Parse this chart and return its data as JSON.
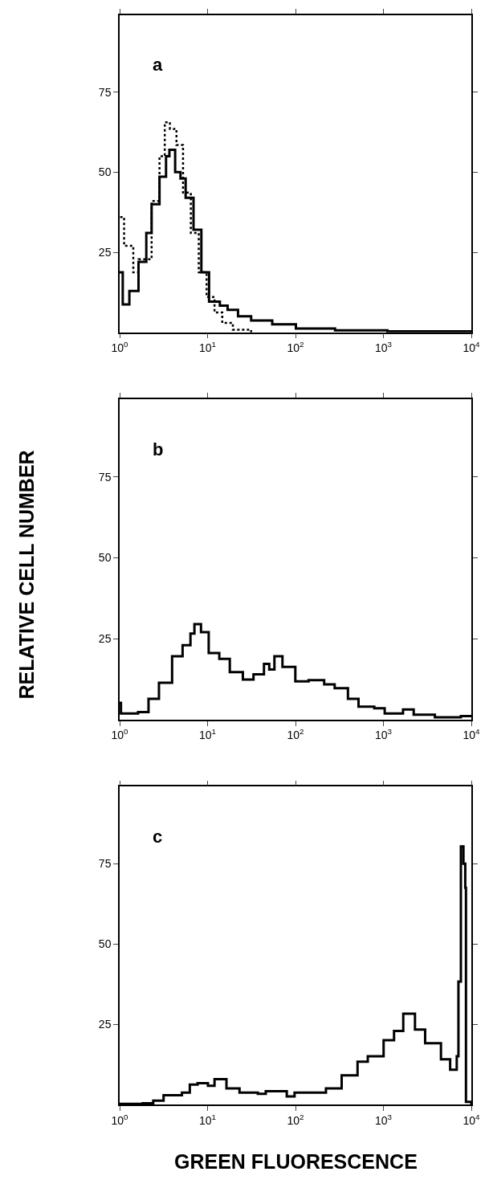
{
  "chart_data": [
    {
      "type": "step",
      "annotations": [
        "a"
      ],
      "log": "x",
      "xlim": [
        1,
        10000
      ],
      "ylim": [
        0,
        99
      ],
      "xticks": [
        {
          "value": 1,
          "label": "10$^{0}$"
        },
        {
          "value": 10,
          "label": "10$^{1}$"
        },
        {
          "value": 100,
          "label": "10$^{2}$"
        },
        {
          "value": 1000,
          "label": "10$^{3}$"
        },
        {
          "value": 10000,
          "label": "10$^{4}$"
        }
      ],
      "yticks": [
        25,
        50,
        75
      ],
      "series": [
        {
          "color": "#000000",
          "line_style": "solid",
          "x": [
            1.0,
            1.085,
            1.29,
            1.64,
            2.01,
            2.31,
            2.84,
            3.37,
            3.68,
            4.28,
            4.92,
            5.63,
            6.92,
            8.5,
            10.4,
            13.8,
            16.9,
            22.2,
            31.3,
            54.4,
            101,
            282,
            1111,
            10000
          ],
          "values": [
            18.7,
            8.7,
            12.9,
            22,
            31,
            40,
            48.6,
            55,
            57,
            50,
            48,
            42,
            32,
            18.7,
            9.6,
            8.3,
            7,
            5,
            3.7,
            2.5,
            1.2,
            0.6,
            0.3,
            0.2
          ]
        },
        {
          "color": "#000000",
          "line_style": "dotted",
          "x": [
            1.014,
            1.124,
            1.43,
            1.64,
            2.31,
            2.84,
            3.26,
            3.73,
            4.43,
            5.26,
            6.45,
            7.94,
            9.75,
            12.0,
            14.7,
            19.4,
            31.3
          ],
          "values": [
            36,
            27,
            18.7,
            22.8,
            41,
            55,
            65.6,
            63.5,
            58.5,
            43.6,
            31,
            18.7,
            11,
            6.2,
            2.9,
            0.8,
            0
          ]
        }
      ]
    },
    {
      "type": "step",
      "annotations": [
        "b"
      ],
      "ylabel": "RELATIVE CELL NUMBER",
      "log": "x",
      "xlim": [
        1,
        10000
      ],
      "ylim": [
        0,
        99
      ],
      "xticks": [
        {
          "value": 1,
          "label": "10$^{0}$"
        },
        {
          "value": 10,
          "label": "10$^{1}$"
        },
        {
          "value": 100,
          "label": "10$^{2}$"
        },
        {
          "value": 1000,
          "label": "10$^{3}$"
        },
        {
          "value": 10000,
          "label": "10$^{4}$"
        }
      ],
      "yticks": [
        25,
        50,
        75
      ],
      "series": [
        {
          "color": "#000000",
          "line_style": "solid",
          "x": [
            1,
            1.035,
            1.62,
            2.13,
            2.8,
            3.95,
            5.2,
            6.39,
            7.09,
            8.42,
            10.3,
            13.6,
            17.9,
            25.2,
            33.3,
            43.8,
            50.3,
            57.6,
            71.1,
            99.6,
            141,
            212,
            279,
            395,
            521,
            787,
            1034,
            1672,
            2210,
            3850,
            7600,
            10000
          ],
          "values": [
            5.2,
            1.9,
            2.3,
            6.4,
            11.4,
            19.6,
            23,
            26.6,
            29.5,
            27,
            20.6,
            18.8,
            14.7,
            12.4,
            14,
            17.2,
            15.5,
            19.6,
            16.3,
            11.8,
            12.2,
            10.9,
            9.7,
            6.4,
            4,
            3.5,
            1.9,
            3.1,
            1.5,
            0.7,
            1.1,
            0.7
          ]
        }
      ]
    },
    {
      "type": "step",
      "annotations": [
        "c"
      ],
      "xlabel": "GREEN FLUORESCENCE",
      "log": "x",
      "xlim": [
        1,
        10000
      ],
      "ylim": [
        0,
        99
      ],
      "xticks": [
        {
          "value": 1,
          "label": "10$^{0}$"
        },
        {
          "value": 10,
          "label": "10$^{1}$"
        },
        {
          "value": 100,
          "label": "10$^{2}$"
        },
        {
          "value": 1000,
          "label": "10$^{3}$"
        },
        {
          "value": 10000,
          "label": "10$^{4}$"
        }
      ],
      "yticks": [
        25,
        50,
        75
      ],
      "series": [
        {
          "color": "#000000",
          "line_style": "solid",
          "x": [
            1,
            1.83,
            2.41,
            3.16,
            5.11,
            6.28,
            7.7,
            10.1,
            12.0,
            16.4,
            23.1,
            37.3,
            45.9,
            79.6,
            97.6,
            158,
            222,
            335,
            508,
            664,
            1005,
            1321,
            1682,
            2286,
            2982,
            4514,
            5741,
            6823,
            7132,
            7605,
            8135,
            8527,
            8688,
            10000
          ],
          "values": [
            0.2,
            0.4,
            1.2,
            2.9,
            3.7,
            6.2,
            6.6,
            5.8,
            7.9,
            5,
            3.7,
            3.3,
            4.1,
            2.5,
            3.7,
            3.7,
            5,
            9.1,
            13.3,
            15,
            20,
            22.9,
            28.3,
            23.3,
            19.1,
            14.1,
            10.8,
            15,
            38.3,
            80.4,
            75,
            67.5,
            0.8,
            0
          ]
        }
      ]
    }
  ]
}
